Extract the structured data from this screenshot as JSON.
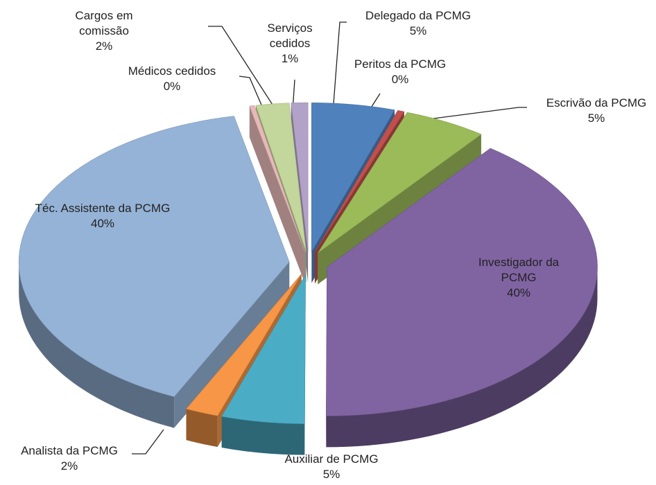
{
  "chart_data": {
    "type": "pie3d",
    "categories": [
      "Delegado da PCMG",
      "Peritos da PCMG",
      "Escrivão da PCMG",
      "Investigador da PCMG",
      "Auxiliar de PCMG",
      "Analista da PCMG",
      "Téc. Assistente da PCMG",
      "Médicos cedidos",
      "Cargos em comissão",
      "Serviços cedidos"
    ],
    "values": [
      5,
      0.4,
      5,
      40,
      5,
      2,
      40,
      0.3,
      2,
      1
    ],
    "value_labels": [
      "5%",
      "0%",
      "5%",
      "40%",
      "5%",
      "2%",
      "40%",
      "0%",
      "2%",
      "1%"
    ],
    "colors": [
      "#4f81bd",
      "#c0504d",
      "#9bbb59",
      "#8064a2",
      "#4bacc6",
      "#f79646",
      "#95b3d7",
      "#e6b9b8",
      "#c3d69b",
      "#b3a2c7"
    ]
  }
}
